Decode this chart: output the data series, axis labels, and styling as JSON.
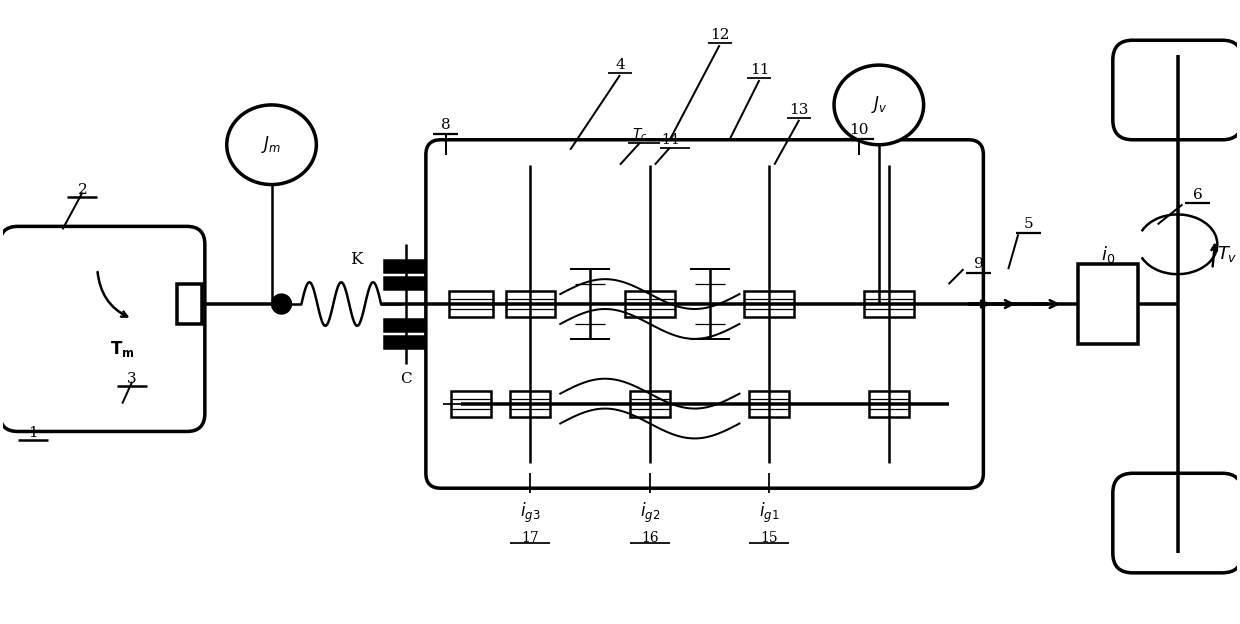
{
  "bg_color": "#ffffff",
  "line_color": "#000000",
  "fig_width": 12.4,
  "fig_height": 6.24,
  "dpi": 100
}
